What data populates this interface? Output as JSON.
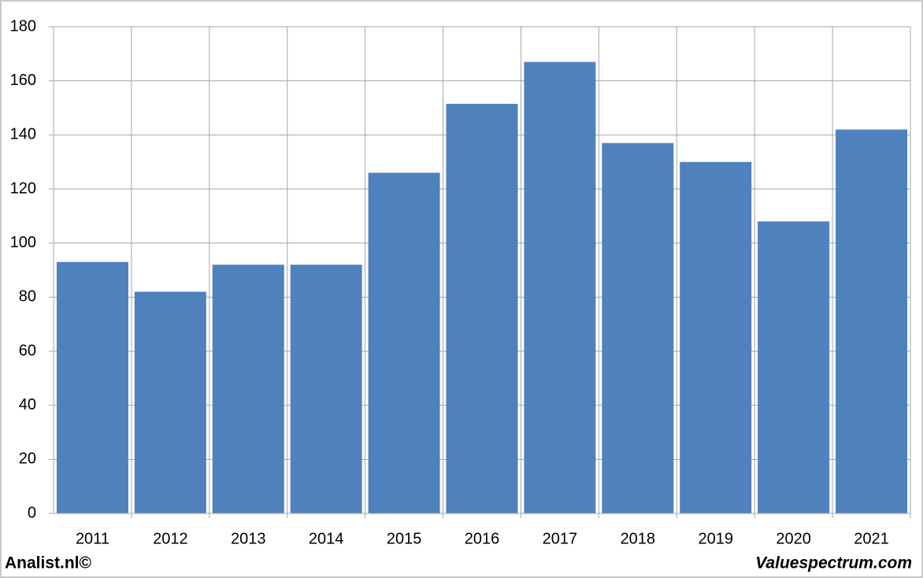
{
  "chart_data": {
    "type": "bar",
    "categories": [
      "2011",
      "2012",
      "2013",
      "2014",
      "2015",
      "2016",
      "2017",
      "2018",
      "2019",
      "2020",
      "2021"
    ],
    "values": [
      93,
      82,
      92,
      92,
      126,
      151.5,
      167,
      137,
      130,
      108,
      142
    ],
    "color": "#4f81bd",
    "ylim": [
      0,
      180
    ],
    "yticks": [
      0,
      20,
      40,
      60,
      80,
      100,
      120,
      140,
      160,
      180
    ],
    "grid": true,
    "annotations": [
      "Analist.nl©",
      "Valuespectrum.com"
    ]
  }
}
